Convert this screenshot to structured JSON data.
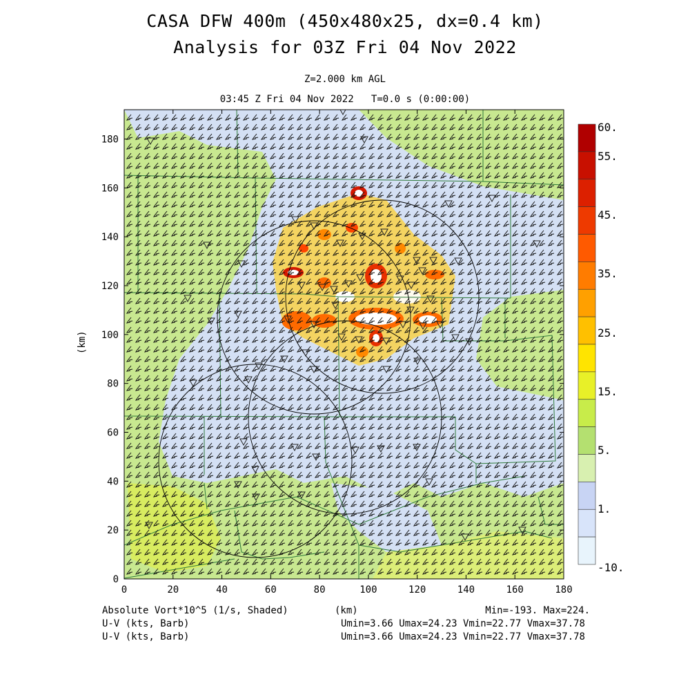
{
  "header": {
    "title_line1": "CASA DFW 400m (450x480x25, dx=0.4 km)",
    "title_line2": "Analysis for 03Z Fri 04 Nov 2022",
    "level": "Z=2.000 km AGL",
    "valid": "03:45 Z Fri 04 Nov 2022   T=0.0 s (0:00:00)"
  },
  "axes": {
    "x_label": "(km)",
    "y_label": "(km)",
    "x_ticks": [
      "0",
      "20",
      "40",
      "60",
      "80",
      "100",
      "120",
      "140",
      "160",
      "180"
    ],
    "y_ticks": [
      "0",
      "20",
      "40",
      "60",
      "80",
      "100",
      "120",
      "140",
      "160",
      "180"
    ],
    "x_range": [
      0,
      180
    ],
    "y_range": [
      0,
      192
    ]
  },
  "colorbar": {
    "labels": [
      "60.",
      "55.",
      "45.",
      "35.",
      "25.",
      "15.",
      "5.",
      "1.",
      "-10."
    ],
    "colors": [
      "#b00000",
      "#c81000",
      "#dc2000",
      "#ee3a00",
      "#ff5a00",
      "#ff7c00",
      "#ffa000",
      "#ffc000",
      "#ffe400",
      "#e8f028",
      "#c8ec4a",
      "#b4e070",
      "#d8f0b0",
      "#c8d4f4",
      "#d8e4fa",
      "#e8f4fc"
    ]
  },
  "footer": {
    "field": "Absolute Vort*10^5 (1/s, Shaded)",
    "units": "(km)",
    "minmax": "Min=-193. Max=224.",
    "barb1_label": "U-V (kts, Barb)",
    "barb1_stats": "Umin=3.66 Umax=24.23 Vmin=22.77 Vmax=37.78",
    "barb2_label": "U-V (kts, Barb)",
    "barb2_stats": "Umin=3.66 Umax=24.23 Vmin=22.77 Vmax=37.78"
  },
  "map_colors": {
    "background_green": "#c8e890",
    "light_blue": "#d4e0f4",
    "yellow_green": "#d8ec60",
    "county_lines": "#2e7a3a"
  },
  "radars": [
    {
      "center_km": [
        105,
        106
      ],
      "range_km": 50
    },
    {
      "center_km": [
        75,
        98
      ],
      "range_km": 50
    },
    {
      "center_km": [
        90,
        68
      ],
      "range_km": 40
    },
    {
      "center_km": [
        55,
        50
      ],
      "range_km": 40
    }
  ]
}
